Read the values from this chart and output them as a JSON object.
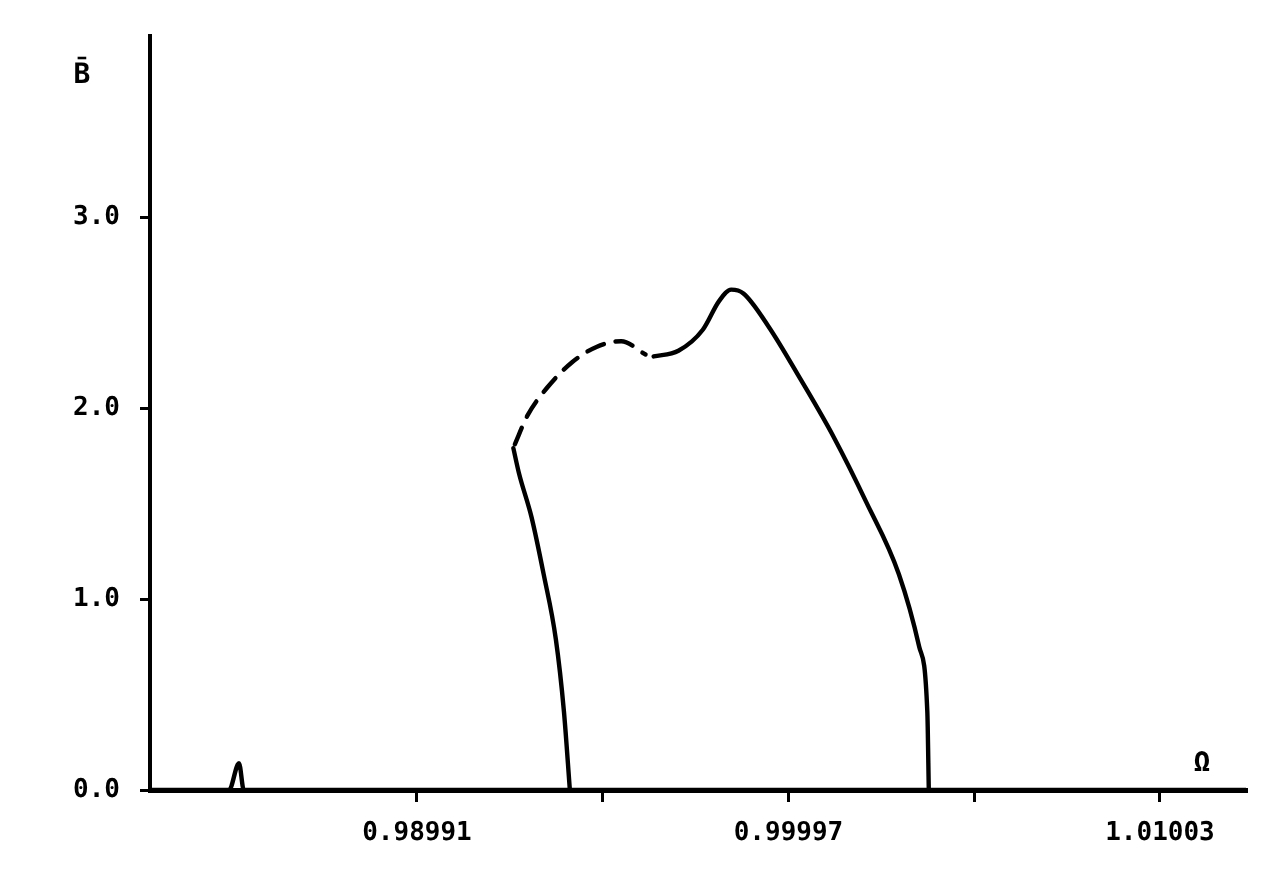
{
  "chart_data": {
    "type": "line",
    "xlabel": "Ω",
    "ylabel": "B̄",
    "marker": "none",
    "xlim": [
      0.98268,
      1.01236
    ],
    "ylim": [
      0,
      3.95
    ],
    "xticks": [
      0.98991,
      {
        "value": 0.99494,
        "label": null
      },
      0.99997,
      {
        "value": 1.005,
        "label": null
      },
      1.01003
    ],
    "yticks": [
      {
        "value": 0,
        "label": "0.0"
      },
      {
        "value": 1,
        "label": "1.0"
      },
      {
        "value": 2,
        "label": "2.0"
      },
      {
        "value": 3,
        "label": "3.0"
      }
    ],
    "series": [
      {
        "color": "#000000",
        "line_style": "solid",
        "x": [
          0.98268,
          0.98482,
          0.98509,
          0.98522,
          1.01236
        ],
        "values": [
          0,
          0,
          0.14,
          0,
          0
        ]
      },
      {
        "color": "#000000",
        "line_style": "solid",
        "x": [
          0.99405,
          0.99389,
          0.99367,
          0.99334,
          0.99301,
          0.99267,
          0.99252
        ],
        "values": [
          0,
          0.41,
          0.79,
          1.13,
          1.43,
          1.66,
          1.79
        ]
      },
      {
        "color": "#000000",
        "line_style": "dashed",
        "x": [
          0.99256,
          0.9929,
          0.99345,
          0.99411,
          0.99477,
          0.99544,
          0.9961
        ],
        "values": [
          1.81,
          1.96,
          2.11,
          2.24,
          2.32,
          2.35,
          2.28
        ]
      },
      {
        "color": "#000000",
        "line_style": "solid",
        "x": [
          0.99632,
          0.99699,
          0.99765,
          0.99809,
          0.99842,
          0.99875,
          0.99942,
          1.0003,
          1.00119,
          1.00207,
          1.00296,
          1.00351,
          1.00373,
          1.00377
        ],
        "values": [
          2.27,
          2.3,
          2.41,
          2.56,
          2.62,
          2.6,
          2.43,
          2.15,
          1.85,
          1.51,
          1.13,
          0.75,
          0.41,
          0
        ]
      }
    ]
  }
}
